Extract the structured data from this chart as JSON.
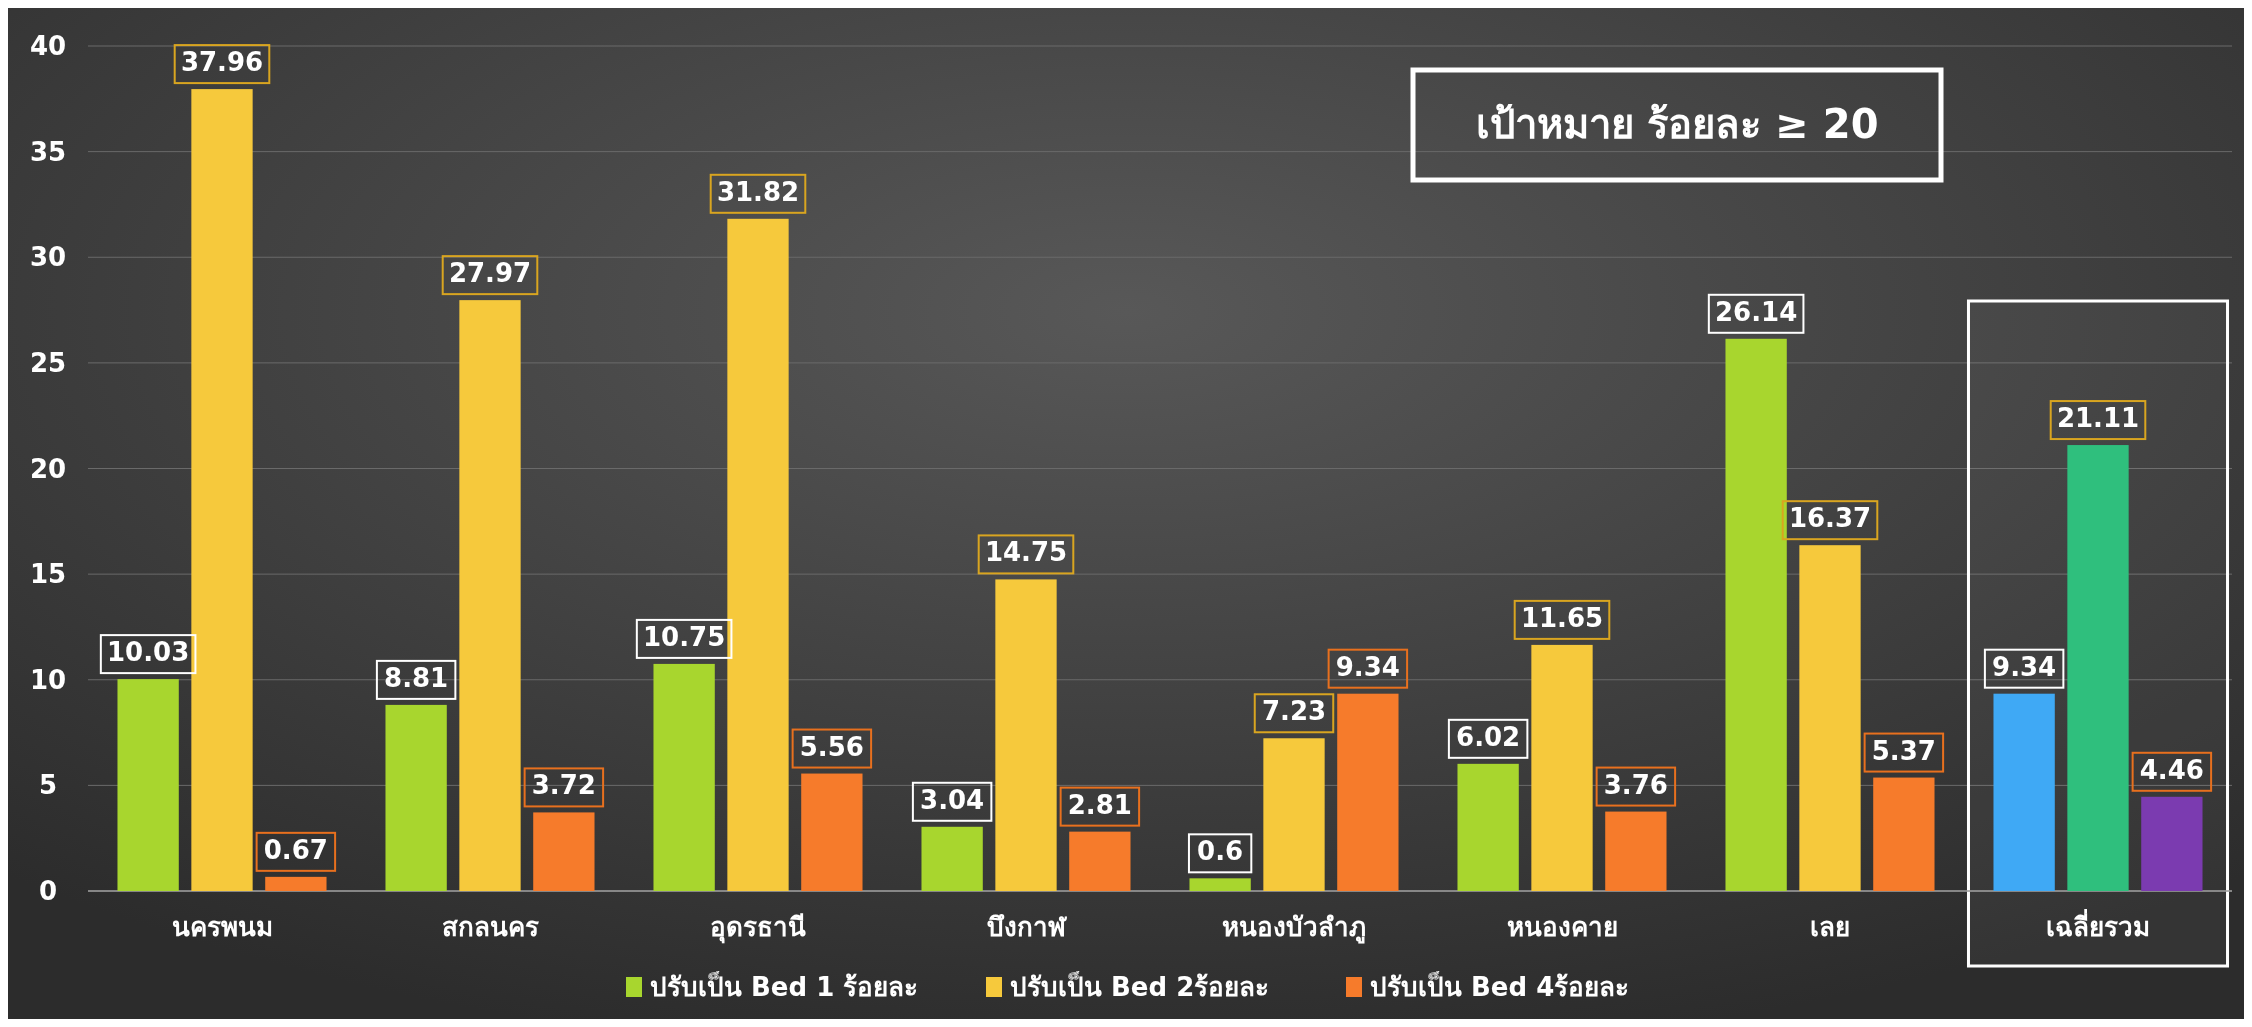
{
  "chart_data": {
    "type": "bar",
    "categories": [
      "นครพนม",
      "สกลนคร",
      "อุดรธานี",
      "บึงกาฬ",
      "หนองบัวลำภู",
      "หนองคาย",
      "เลย",
      "เฉลี่ยรวม"
    ],
    "series": [
      {
        "name": "ปรับเป็น Bed 1 ร้อยละ",
        "color": "#a8d62e",
        "colors": [
          "#a8d62e",
          "#a8d62e",
          "#a8d62e",
          "#a8d62e",
          "#a8d62e",
          "#a8d62e",
          "#a8d62e",
          "#3fa9f5"
        ],
        "values": [
          10.03,
          8.81,
          10.75,
          3.04,
          0.6,
          6.02,
          26.14,
          9.34
        ]
      },
      {
        "name": "ปรับเป็น Bed 2ร้อยละ",
        "color": "#f6c93c",
        "colors": [
          "#f6c93c",
          "#f6c93c",
          "#f6c93c",
          "#f6c93c",
          "#f6c93c",
          "#f6c93c",
          "#f6c93c",
          "#2fbf7d"
        ],
        "values": [
          37.96,
          27.97,
          31.82,
          14.75,
          7.23,
          11.65,
          16.37,
          21.11
        ]
      },
      {
        "name": "ปรับเป็น Bed 4ร้อยละ",
        "color": "#f67b2b",
        "colors": [
          "#f67b2b",
          "#f67b2b",
          "#f67b2b",
          "#f67b2b",
          "#f67b2b",
          "#f67b2b",
          "#f67b2b",
          "#7b3bb0"
        ],
        "values": [
          0.67,
          3.72,
          5.56,
          2.81,
          9.34,
          3.76,
          5.37,
          4.46
        ]
      }
    ],
    "bands": [
      {
        "axis": "x",
        "from": "เฉลี่ยรวม",
        "to": "เฉลี่ยรวม",
        "color": "#ffffff"
      }
    ],
    "ylim": [
      0,
      40
    ],
    "yticks": [
      0,
      5,
      10,
      15,
      20,
      25,
      30,
      35,
      40
    ],
    "grid": "y",
    "legend": "bottom",
    "data_labels": true,
    "annotations": [
      "เป้าหมาย ร้อยละ ≥ 20"
    ]
  }
}
